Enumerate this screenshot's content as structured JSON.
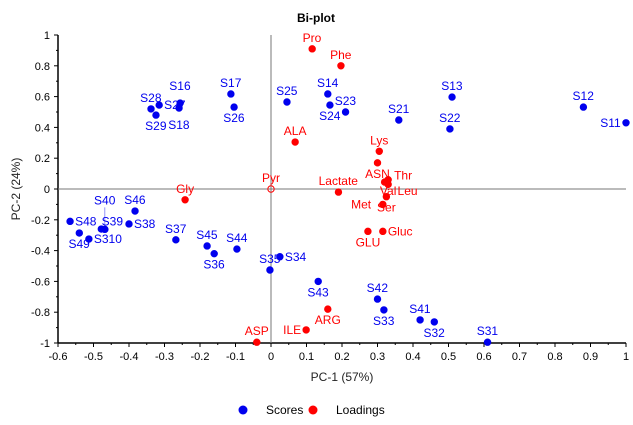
{
  "chart_data": {
    "type": "scatter",
    "title": "Bi-plot",
    "xlabel": "PC-1 (57%)",
    "ylabel": "PC-2 (24%)",
    "xlim": [
      -0.6,
      1
    ],
    "ylim": [
      -1,
      1
    ],
    "xticks": [
      "-0.6",
      "-0.5",
      "-0.4",
      "-0.3",
      "-0.2",
      "-0.1",
      "0",
      "0.1",
      "0.2",
      "0.3",
      "0.4",
      "0.5",
      "0.6",
      "0.7",
      "0.8",
      "0.9",
      "1"
    ],
    "yticks": [
      "-1",
      "-0.8",
      "-0.6",
      "-0.4",
      "-0.2",
      "0",
      "0.2",
      "0.4",
      "0.6",
      "0.8",
      "1"
    ],
    "grid": false,
    "legend_placement": "bottom",
    "series": [
      {
        "name": "Scores",
        "color": "#0000ee",
        "points": [
          {
            "label": "S28",
            "x": -0.338,
            "y": 0.52
          },
          {
            "label": "S29",
            "x": -0.324,
            "y": 0.48
          },
          {
            "label": "S27",
            "x": -0.315,
            "y": 0.545
          },
          {
            "label": "S18",
            "x": -0.259,
            "y": 0.526
          },
          {
            "label": "S16",
            "x": -0.256,
            "y": 0.558
          },
          {
            "label": "S17",
            "x": -0.113,
            "y": 0.617
          },
          {
            "label": "S26",
            "x": -0.104,
            "y": 0.532
          },
          {
            "label": "S25",
            "x": 0.045,
            "y": 0.565
          },
          {
            "label": "S14",
            "x": 0.16,
            "y": 0.617
          },
          {
            "label": "S24",
            "x": 0.166,
            "y": 0.545
          },
          {
            "label": "S23",
            "x": 0.21,
            "y": 0.5
          },
          {
            "label": "S21",
            "x": 0.36,
            "y": 0.448
          },
          {
            "label": "S13",
            "x": 0.51,
            "y": 0.597
          },
          {
            "label": "S22",
            "x": 0.504,
            "y": 0.39
          },
          {
            "label": "S12",
            "x": 0.88,
            "y": 0.532
          },
          {
            "label": "S11",
            "x": 1.0,
            "y": 0.43
          },
          {
            "label": "S48",
            "x": -0.566,
            "y": -0.21
          },
          {
            "label": "S49",
            "x": -0.54,
            "y": -0.286
          },
          {
            "label": "S310",
            "x": -0.513,
            "y": -0.325
          },
          {
            "label": "S39",
            "x": -0.478,
            "y": -0.26
          },
          {
            "label": "S40",
            "x": -0.468,
            "y": -0.262
          },
          {
            "label": "S38",
            "x": -0.4,
            "y": -0.227
          },
          {
            "label": "S46",
            "x": -0.383,
            "y": -0.143
          },
          {
            "label": "S37",
            "x": -0.268,
            "y": -0.33
          },
          {
            "label": "S45",
            "x": -0.18,
            "y": -0.37
          },
          {
            "label": "S36",
            "x": -0.16,
            "y": -0.42
          },
          {
            "label": "S44",
            "x": -0.096,
            "y": -0.39
          },
          {
            "label": "S35",
            "x": -0.003,
            "y": -0.526
          },
          {
            "label": "S34",
            "x": 0.025,
            "y": -0.44
          },
          {
            "label": "S43",
            "x": 0.133,
            "y": -0.6
          },
          {
            "label": "S42",
            "x": 0.3,
            "y": -0.715
          },
          {
            "label": "S33",
            "x": 0.318,
            "y": -0.785
          },
          {
            "label": "S41",
            "x": 0.42,
            "y": -0.85
          },
          {
            "label": "S32",
            "x": 0.46,
            "y": -0.863
          },
          {
            "label": "S31",
            "x": 0.61,
            "y": -0.995
          }
        ]
      },
      {
        "name": "Loadings",
        "color": "#ff0000",
        "points": [
          {
            "label": "Pro",
            "x": 0.116,
            "y": 0.91
          },
          {
            "label": "Phe",
            "x": 0.197,
            "y": 0.8
          },
          {
            "label": "ALA",
            "x": 0.068,
            "y": 0.305
          },
          {
            "label": "Pyr",
            "x": 0.0,
            "y": 0.0
          },
          {
            "label": "Gly",
            "x": -0.242,
            "y": -0.07
          },
          {
            "label": "Lactate",
            "x": 0.19,
            "y": -0.02
          },
          {
            "label": "Lys",
            "x": 0.305,
            "y": 0.245
          },
          {
            "label": "ASN",
            "x": 0.3,
            "y": 0.17
          },
          {
            "label": "Val",
            "x": 0.33,
            "y": 0.06
          },
          {
            "label": "Thr",
            "x": 0.32,
            "y": 0.045
          },
          {
            "label": "Leu",
            "x": 0.33,
            "y": 0.03
          },
          {
            "label": "Ser",
            "x": 0.325,
            "y": -0.05
          },
          {
            "label": "Met",
            "x": 0.315,
            "y": -0.1
          },
          {
            "label": "GLU",
            "x": 0.273,
            "y": -0.275
          },
          {
            "label": "Gluc",
            "x": 0.315,
            "y": -0.275
          },
          {
            "label": "ARG",
            "x": 0.16,
            "y": -0.78
          },
          {
            "label": "ILE",
            "x": 0.099,
            "y": -0.915
          },
          {
            "label": "ASP",
            "x": -0.04,
            "y": -0.995
          }
        ]
      }
    ]
  }
}
